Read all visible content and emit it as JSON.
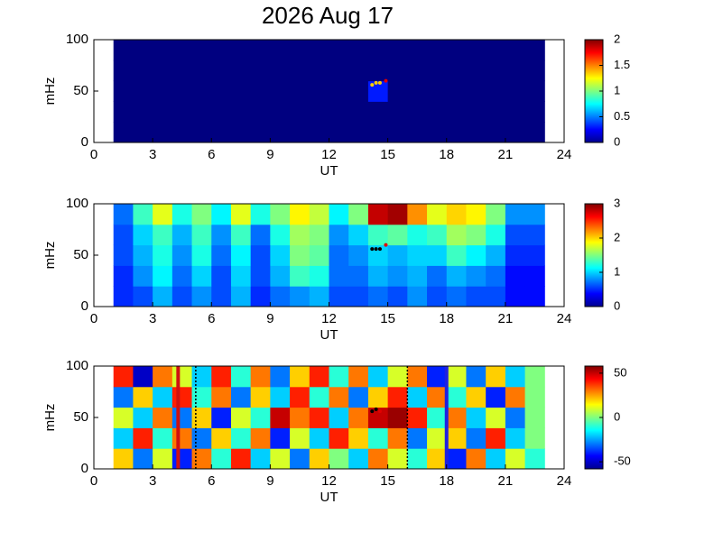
{
  "chart_data": [
    {
      "type": "heatmap",
      "title": "2026 Aug 17",
      "xlabel": "UT",
      "ylabel": "mHz",
      "xlim": [
        0,
        24
      ],
      "xticks": [
        0,
        3,
        6,
        9,
        12,
        15,
        18,
        21,
        24
      ],
      "ylim": [
        0,
        100
      ],
      "yticks": [
        0,
        50,
        100
      ],
      "clim": [
        0,
        2
      ],
      "cticks": [
        0,
        0.5,
        1,
        1.5,
        2
      ],
      "x_edges": [
        1,
        2,
        3,
        4,
        5,
        6,
        7,
        8,
        9,
        10,
        11,
        12,
        13,
        14,
        15,
        16,
        17,
        18,
        19,
        20,
        21,
        22,
        23
      ],
      "y_edges": [
        0,
        20,
        40,
        60,
        80,
        100
      ],
      "z": [
        [
          0,
          0,
          0,
          0,
          0,
          0,
          0,
          0,
          0,
          0,
          0,
          0,
          0,
          0,
          0,
          0,
          0,
          0,
          0,
          0,
          0,
          0
        ],
        [
          0,
          0,
          0,
          0,
          0,
          0,
          0,
          0,
          0,
          0,
          0,
          0,
          0,
          0,
          0,
          0,
          0,
          0,
          0,
          0,
          0,
          0
        ],
        [
          0,
          0,
          0,
          0,
          0,
          0,
          0,
          0,
          0,
          0,
          0,
          0,
          0,
          0.3,
          0,
          0,
          0,
          0,
          0,
          0,
          0,
          0
        ],
        [
          0,
          0,
          0,
          0,
          0,
          0,
          0,
          0,
          0,
          0,
          0,
          0,
          0,
          0,
          0,
          0,
          0,
          0,
          0,
          0,
          0,
          0
        ],
        [
          0,
          0,
          0,
          0,
          0,
          0,
          0,
          0,
          0,
          0,
          0,
          0,
          0,
          0,
          0,
          0,
          0,
          0,
          0,
          0,
          0,
          0
        ]
      ],
      "points": {
        "x": [
          14.2,
          14.4,
          14.6,
          14.9
        ],
        "y": [
          56,
          58,
          58,
          60
        ],
        "color": "#ffd000"
      }
    },
    {
      "type": "heatmap",
      "xlabel": "UT",
      "ylabel": "mHz",
      "xlim": [
        0,
        24
      ],
      "xticks": [
        0,
        3,
        6,
        9,
        12,
        15,
        18,
        21,
        24
      ],
      "ylim": [
        0,
        100
      ],
      "yticks": [
        0,
        50,
        100
      ],
      "clim": [
        0,
        3
      ],
      "cticks": [
        0,
        1,
        2,
        3
      ],
      "x_edges": [
        1,
        2,
        3,
        4,
        5,
        6,
        7,
        8,
        9,
        10,
        11,
        12,
        13,
        14,
        15,
        16,
        17,
        18,
        19,
        20,
        21,
        22,
        23
      ],
      "y_edges": [
        0,
        20,
        40,
        60,
        80,
        100
      ],
      "z": [
        [
          0.5,
          0.6,
          0.9,
          0.6,
          0.8,
          0.6,
          0.9,
          0.5,
          0.7,
          0.8,
          0.9,
          0.6,
          0.6,
          0.7,
          0.6,
          0.8,
          0.6,
          0.7,
          0.6,
          0.6,
          0.4,
          0.4
        ],
        [
          0.5,
          0.8,
          1.1,
          0.7,
          1.0,
          0.6,
          1.0,
          0.6,
          0.9,
          1.3,
          1.2,
          0.7,
          0.7,
          0.9,
          0.8,
          0.9,
          0.7,
          0.9,
          0.8,
          0.7,
          0.4,
          0.4
        ],
        [
          0.6,
          0.9,
          1.2,
          0.8,
          1.2,
          0.7,
          1.1,
          0.6,
          1.0,
          1.5,
          1.4,
          0.7,
          0.8,
          1.0,
          0.9,
          1.0,
          1.0,
          1.3,
          1.1,
          0.9,
          0.5,
          0.5
        ],
        [
          0.6,
          1.0,
          1.3,
          0.9,
          1.3,
          0.8,
          1.3,
          0.7,
          1.2,
          1.6,
          1.5,
          0.8,
          1.0,
          1.3,
          1.4,
          1.2,
          1.3,
          1.6,
          1.5,
          1.2,
          0.6,
          0.6
        ],
        [
          0.7,
          1.3,
          1.8,
          1.2,
          1.5,
          1.1,
          1.8,
          1.2,
          1.5,
          1.9,
          1.7,
          1.1,
          1.5,
          2.8,
          2.9,
          2.2,
          1.8,
          2.0,
          1.9,
          1.5,
          0.8,
          0.8
        ]
      ],
      "points": {
        "x": [
          14.2,
          14.4,
          14.6,
          14.9
        ],
        "y": [
          56,
          56,
          56,
          60
        ],
        "color": "#000000"
      }
    },
    {
      "type": "heatmap",
      "xlabel": "UT",
      "ylabel": "mHz",
      "xlim": [
        0,
        24
      ],
      "xticks": [
        0,
        3,
        6,
        9,
        12,
        15,
        18,
        21,
        24
      ],
      "ylim": [
        0,
        100
      ],
      "yticks": [
        0,
        50,
        100
      ],
      "clim": [
        -58,
        58
      ],
      "cticks": [
        -50,
        0,
        50
      ],
      "x_edges": [
        1,
        2,
        3,
        4,
        5,
        6,
        7,
        8,
        9,
        10,
        11,
        12,
        13,
        14,
        15,
        16,
        17,
        18,
        19,
        20,
        21,
        22,
        23
      ],
      "y_edges": [
        0,
        20,
        40,
        60,
        80,
        100
      ],
      "z": [
        [
          20,
          -30,
          10,
          -40,
          30,
          -10,
          40,
          -20,
          10,
          -30,
          20,
          0,
          -20,
          30,
          10,
          -10,
          20,
          -40,
          30,
          -20,
          10,
          -10
        ],
        [
          -20,
          40,
          -10,
          30,
          -30,
          20,
          -10,
          30,
          -40,
          10,
          -20,
          40,
          20,
          -10,
          30,
          -30,
          10,
          20,
          -30,
          40,
          -20,
          0
        ],
        [
          10,
          -20,
          30,
          -30,
          20,
          -40,
          10,
          -10,
          50,
          30,
          40,
          -20,
          30,
          50,
          55,
          40,
          -10,
          30,
          -20,
          10,
          -30,
          0
        ],
        [
          -30,
          20,
          -20,
          40,
          -10,
          30,
          -30,
          20,
          -20,
          40,
          -10,
          30,
          -30,
          20,
          40,
          -20,
          30,
          -10,
          20,
          -40,
          30,
          0
        ],
        [
          40,
          -50,
          30,
          10,
          -20,
          40,
          -10,
          30,
          -30,
          20,
          40,
          -10,
          30,
          -20,
          10,
          30,
          -40,
          10,
          -30,
          20,
          -20,
          0
        ]
      ],
      "points": {
        "x": [
          14.2,
          14.4,
          14.6
        ],
        "y": [
          56,
          58,
          56
        ],
        "color": "#000000"
      },
      "vlines": [
        {
          "x": 4.3,
          "color": "#d01010",
          "dashed": false
        },
        {
          "x": 18,
          "color": "#2020e0",
          "dashed": false
        },
        {
          "x": 5.2,
          "color": "#000000",
          "dashed": true
        },
        {
          "x": 16,
          "color": "#000000",
          "dashed": true
        }
      ]
    }
  ]
}
